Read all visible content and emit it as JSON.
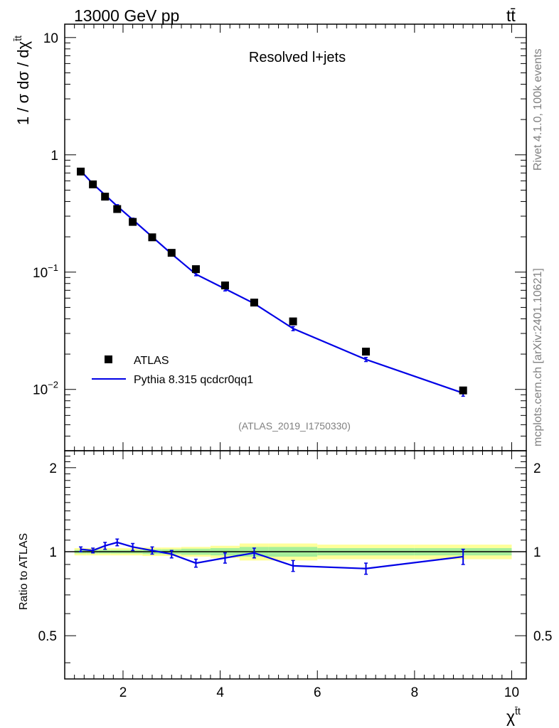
{
  "header": {
    "left": "13000 GeV pp",
    "right_base": "t",
    "right_bar": "t̄"
  },
  "side": {
    "rivet": "Rivet 4.1.0,  100k events",
    "source": "mcplots.cern.ch [arXiv:2401.10621]"
  },
  "chart_data": {
    "type": "line",
    "title": "Resolved l+jets",
    "analysis_tag": "(ATLAS_2019_I1750330)",
    "ylabel_parts": {
      "main": "1 / σ dσ / dχ",
      "sup": "t̄t"
    },
    "xlabel_parts": {
      "main": "χ",
      "sup": "t̄t"
    },
    "ratio_ylabel": "Ratio to ATLAS",
    "xlim": [
      0.8,
      10.3
    ],
    "ylim": [
      0.003,
      13
    ],
    "yscale": "log",
    "ratio_ylim": [
      0.35,
      2.3
    ],
    "x_ticks": [
      2,
      4,
      6,
      8,
      10
    ],
    "y_tick_labels": [
      {
        "value": 10,
        "base": "10",
        "exp": ""
      },
      {
        "value": 1,
        "base": "1",
        "exp": ""
      },
      {
        "value": 0.1,
        "base": "10",
        "exp": "−1"
      },
      {
        "value": 0.01,
        "base": "10",
        "exp": "−2"
      }
    ],
    "ratio_ticks": [
      {
        "value": 2,
        "label": "2"
      },
      {
        "value": 1,
        "label": "1"
      },
      {
        "value": 0.5,
        "label": "0.5"
      }
    ],
    "bin_edges": [
      1.0,
      1.25,
      1.5,
      1.75,
      2.0,
      2.4,
      2.8,
      3.2,
      3.8,
      4.4,
      5.0,
      6.0,
      8.0,
      10.0
    ],
    "x": [
      1.13,
      1.38,
      1.63,
      1.88,
      2.2,
      2.6,
      3.0,
      3.5,
      4.1,
      4.7,
      5.5,
      7.0,
      9.0
    ],
    "series": [
      {
        "name": "ATLAS",
        "style": "markers",
        "color": "#000000",
        "values": [
          0.72,
          0.56,
          0.44,
          0.345,
          0.268,
          0.198,
          0.146,
          0.106,
          0.077,
          0.055,
          0.038,
          0.021,
          0.0098
        ],
        "ratio_band_outer": [
          0.03,
          0.03,
          0.03,
          0.03,
          0.03,
          0.035,
          0.035,
          0.04,
          0.05,
          0.07,
          0.07,
          0.06,
          0.06
        ],
        "ratio_band_inner": [
          0.015,
          0.015,
          0.015,
          0.015,
          0.015,
          0.02,
          0.02,
          0.025,
          0.03,
          0.04,
          0.04,
          0.03,
          0.03
        ]
      },
      {
        "name": "Pythia 8.315 qcdcr0qq1",
        "style": "line",
        "color": "#0000e6",
        "values": [
          0.73,
          0.565,
          0.455,
          0.365,
          0.28,
          0.2,
          0.143,
          0.096,
          0.072,
          0.054,
          0.033,
          0.018,
          0.0093
        ],
        "ratio": [
          1.02,
          1.01,
          1.05,
          1.08,
          1.04,
          1.01,
          0.98,
          0.91,
          0.95,
          0.99,
          0.89,
          0.87,
          0.96
        ],
        "ratio_err": [
          0.02,
          0.02,
          0.03,
          0.03,
          0.03,
          0.03,
          0.03,
          0.03,
          0.04,
          0.04,
          0.04,
          0.04,
          0.06
        ],
        "rel_err": [
          0.02,
          0.02,
          0.03,
          0.03,
          0.03,
          0.03,
          0.03,
          0.03,
          0.04,
          0.04,
          0.04,
          0.04,
          0.06
        ]
      }
    ],
    "legend": {
      "placement": "lower-left"
    }
  }
}
